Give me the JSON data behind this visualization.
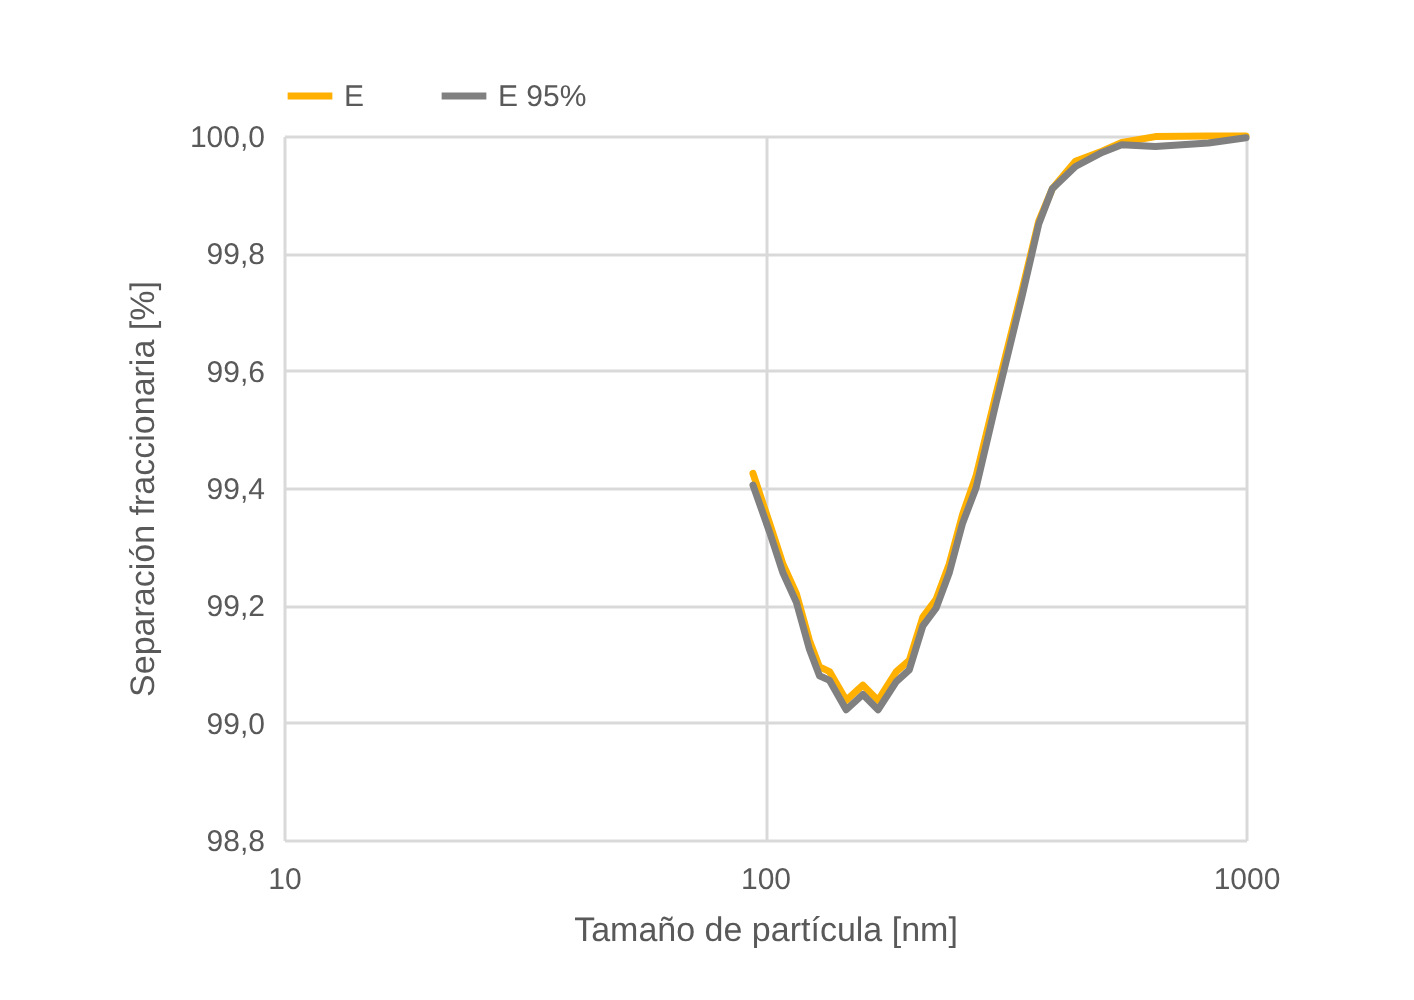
{
  "chart_data": {
    "type": "line",
    "xlabel": "Tamaño de partícula [nm]",
    "ylabel": "Separación fraccionaria [%]",
    "series": [
      {
        "name": "E",
        "color": "#ffb000",
        "x": [
          94.4,
          102.2,
          109,
          116.2,
          123.7,
          129.8,
          136.2,
          147.5,
          159.8,
          171.8,
          187.5,
          199.5,
          212.9,
          226.8,
          241.5,
          257.5,
          274.6,
          302.2,
          343,
          370.8,
          395.6,
          442,
          502,
          551.7,
          648,
          836,
          1000
        ],
        "values": [
          99.425,
          99.34,
          99.27,
          99.22,
          99.14,
          99.095,
          99.087,
          99.038,
          99.064,
          99.038,
          99.087,
          99.106,
          99.18,
          99.21,
          99.27,
          99.355,
          99.42,
          99.56,
          99.74,
          99.855,
          99.91,
          99.957,
          99.974,
          99.989,
          99.999,
          100.0,
          100.0
        ]
      },
      {
        "name": "E 95%",
        "color": "#808080",
        "x": [
          94.4,
          102.2,
          109,
          116.2,
          123.7,
          129.8,
          136.2,
          147.5,
          159.8,
          171.8,
          187.5,
          199.5,
          212.9,
          226.8,
          241.5,
          257.5,
          274.6,
          302.2,
          343,
          370.8,
          395.6,
          442,
          502,
          551.7,
          648,
          836,
          1000
        ],
        "values": [
          99.405,
          99.325,
          99.255,
          99.205,
          99.125,
          99.08,
          99.072,
          99.022,
          99.048,
          99.022,
          99.07,
          99.09,
          99.165,
          99.195,
          99.255,
          99.34,
          99.4,
          99.545,
          99.73,
          99.85,
          99.91,
          99.948,
          99.972,
          99.985,
          99.982,
          99.988,
          99.997
        ]
      }
    ],
    "xlim": [
      10,
      1000
    ],
    "xticks": [
      10,
      100,
      1000
    ],
    "log": "x",
    "ylim": [
      98.8,
      100
    ],
    "yticks": [
      {
        "value": 98.8,
        "label": "98,8"
      },
      {
        "value": 99,
        "label": "99,0"
      },
      {
        "value": 99.2,
        "label": "99,2"
      },
      {
        "value": 99.4,
        "label": "99,4"
      },
      {
        "value": 99.6,
        "label": "99,6"
      },
      {
        "value": 99.8,
        "label": "99,8"
      },
      {
        "value": 100,
        "label": "100,0"
      }
    ],
    "grid": true,
    "legend": "top",
    "line_style": "solid",
    "marker": "none"
  }
}
